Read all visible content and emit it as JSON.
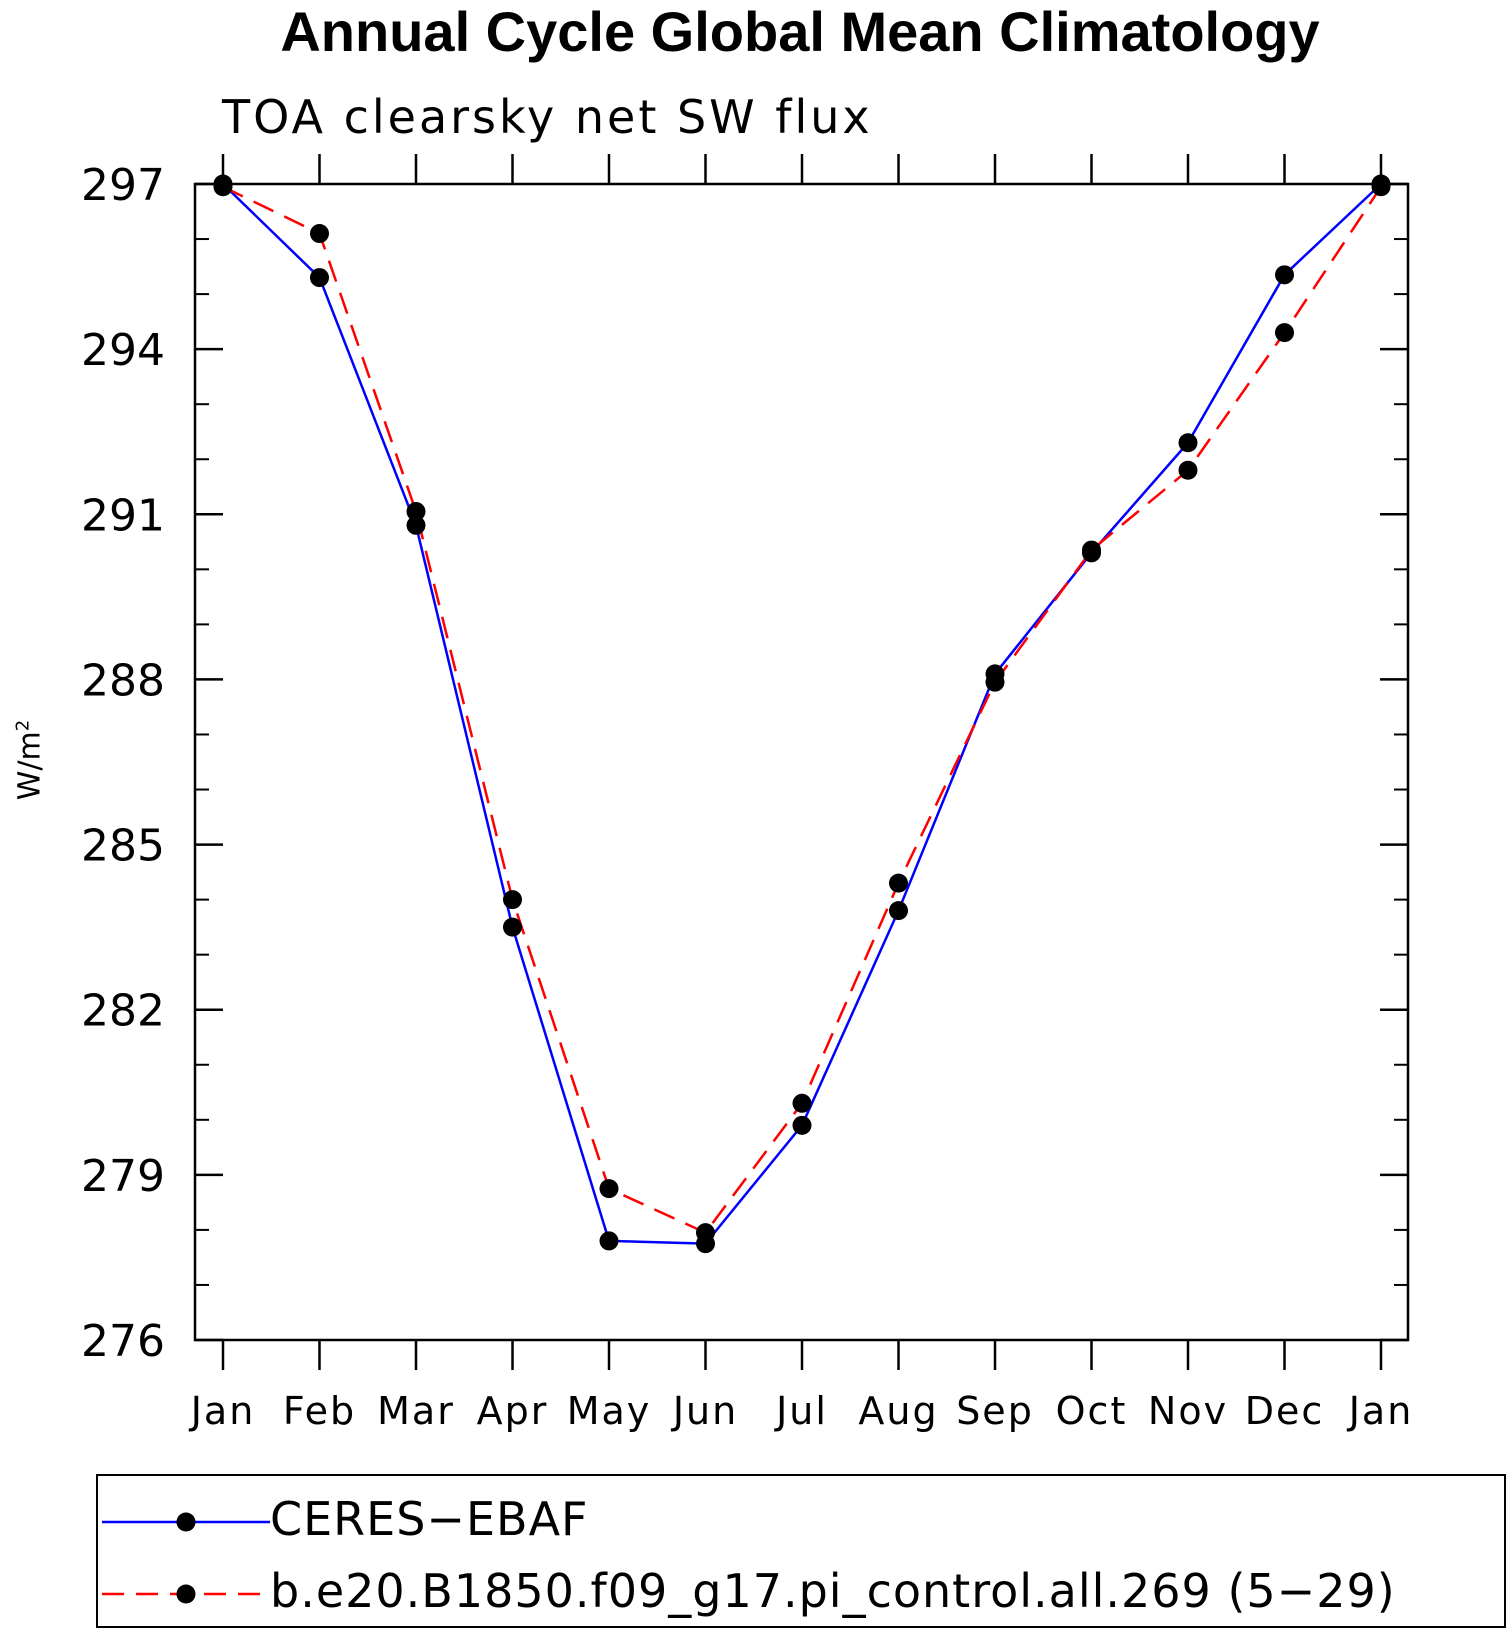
{
  "chart_data": {
    "type": "line",
    "title": "Annual Cycle Global Mean Climatology",
    "subtitle": "TOA clearsky net SW flux",
    "ylabel": "W/m",
    "ylabel_superscript": "2",
    "ylim": [
      276,
      297
    ],
    "yticks": [
      276,
      279,
      282,
      285,
      288,
      291,
      294,
      297
    ],
    "categories": [
      "Jan",
      "Feb",
      "Mar",
      "Apr",
      "May",
      "Jun",
      "Jul",
      "Aug",
      "Sep",
      "Oct",
      "Nov",
      "Dec",
      "Jan"
    ],
    "series": [
      {
        "name": "CERES−EBAF",
        "color": "#0000ff",
        "style": "solid",
        "values": [
          297.0,
          295.3,
          290.8,
          283.5,
          277.8,
          277.75,
          279.9,
          283.8,
          288.1,
          290.3,
          292.3,
          295.35,
          297.0
        ]
      },
      {
        "name": "b.e20.B1850.f09_g17.pi_control.all.269 (5−29)",
        "color": "#ff0000",
        "style": "dashed",
        "values": [
          296.95,
          296.1,
          291.05,
          284.0,
          278.75,
          277.95,
          280.3,
          284.3,
          287.95,
          290.35,
          291.8,
          294.3,
          296.95
        ]
      }
    ],
    "grid": false,
    "legend_position": "bottom"
  }
}
